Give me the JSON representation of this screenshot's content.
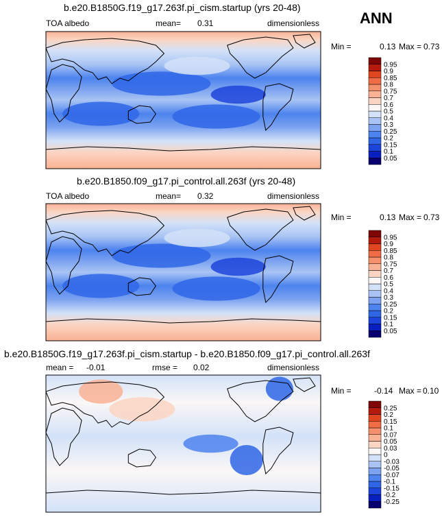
{
  "season_label": "ANN",
  "panels": [
    {
      "title": "b.e20.B1850G.f19_g17.263f.pi_cism.startup (yrs 20-48)",
      "left_label": "TOA albedo",
      "center_label": "mean=",
      "center_value": "0.31",
      "right_label": "dimensionless",
      "min_label": "Min =",
      "min_value": "0.13",
      "max_label": "Max =",
      "max_value": "0.73"
    },
    {
      "title": "b.e20.B1850.f09_g17.pi_control.all.263f (yrs 20-48)",
      "left_label": "TOA albedo",
      "center_label": "mean=",
      "center_value": "0.32",
      "right_label": "dimensionless",
      "min_label": "Min =",
      "min_value": "0.13",
      "max_label": "Max =",
      "max_value": "0.73"
    },
    {
      "title": "b.e20.B1850G.f19_g17.263f.pi_cism.startup - b.e20.B1850.f09_g17.pi_control.all.263f",
      "left_label": "mean =",
      "left_value": "-0.01",
      "center_label": "rmse =",
      "center_value": "0.02",
      "right_label": "dimensionless",
      "min_label": "Min =",
      "min_value": "-0.14",
      "max_label": "Max =",
      "max_value": "0.10"
    }
  ],
  "chart_data": [
    {
      "type": "heatmap",
      "title": "b.e20.B1850G.f19_g17.263f.pi_cism.startup (yrs 20-48)",
      "variable": "TOA albedo",
      "units": "dimensionless",
      "mean": 0.31,
      "min": 0.13,
      "max": 0.73,
      "colorbar_levels": [
        "0.05",
        "0.1",
        "0.15",
        "0.2",
        "0.25",
        "0.3",
        "0.4",
        "0.5",
        "0.6",
        "0.7",
        "0.75",
        "0.8",
        "0.85",
        "0.9",
        "0.95"
      ],
      "colorbar_colors": [
        "#08006e",
        "#0a1fbf",
        "#1c44da",
        "#2f66e6",
        "#4d83ee",
        "#7da3f0",
        "#a9c4f4",
        "#d3e2f8",
        "#faf7f6",
        "#fbd5c3",
        "#f9b294",
        "#f5906c",
        "#ef6c45",
        "#e0461f",
        "#b51b0c",
        "#7e0705"
      ]
    },
    {
      "type": "heatmap",
      "title": "b.e20.B1850.f09_g17.pi_control.all.263f (yrs 20-48)",
      "variable": "TOA albedo",
      "units": "dimensionless",
      "mean": 0.32,
      "min": 0.13,
      "max": 0.73,
      "colorbar_levels": [
        "0.05",
        "0.1",
        "0.15",
        "0.2",
        "0.25",
        "0.3",
        "0.4",
        "0.5",
        "0.6",
        "0.7",
        "0.75",
        "0.8",
        "0.85",
        "0.9",
        "0.95"
      ],
      "colorbar_colors": [
        "#08006e",
        "#0a1fbf",
        "#1c44da",
        "#2f66e6",
        "#4d83ee",
        "#7da3f0",
        "#a9c4f4",
        "#d3e2f8",
        "#faf7f6",
        "#fbd5c3",
        "#f9b294",
        "#f5906c",
        "#ef6c45",
        "#e0461f",
        "#b51b0c",
        "#7e0705"
      ]
    },
    {
      "type": "heatmap",
      "title": "b.e20.B1850G.f19_g17.263f.pi_cism.startup - b.e20.B1850.f09_g17.pi_control.all.263f",
      "units": "dimensionless",
      "mean": -0.01,
      "rmse": 0.02,
      "min": -0.14,
      "max": 0.1,
      "colorbar_levels": [
        "-0.25",
        "-0.2",
        "-0.15",
        "-0.1",
        "-0.07",
        "-0.05",
        "-0.03",
        "0",
        "0.03",
        "0.05",
        "0.07",
        "0.1",
        "0.15",
        "0.2",
        "0.25"
      ],
      "colorbar_colors": [
        "#08006e",
        "#0a1fbf",
        "#1c44da",
        "#2f66e6",
        "#4d83ee",
        "#7da3f0",
        "#a9c4f4",
        "#d3e2f8",
        "#faf7f6",
        "#fbd5c3",
        "#f9b294",
        "#f5906c",
        "#ef6c45",
        "#e0461f",
        "#b51b0c",
        "#7e0705"
      ]
    }
  ]
}
